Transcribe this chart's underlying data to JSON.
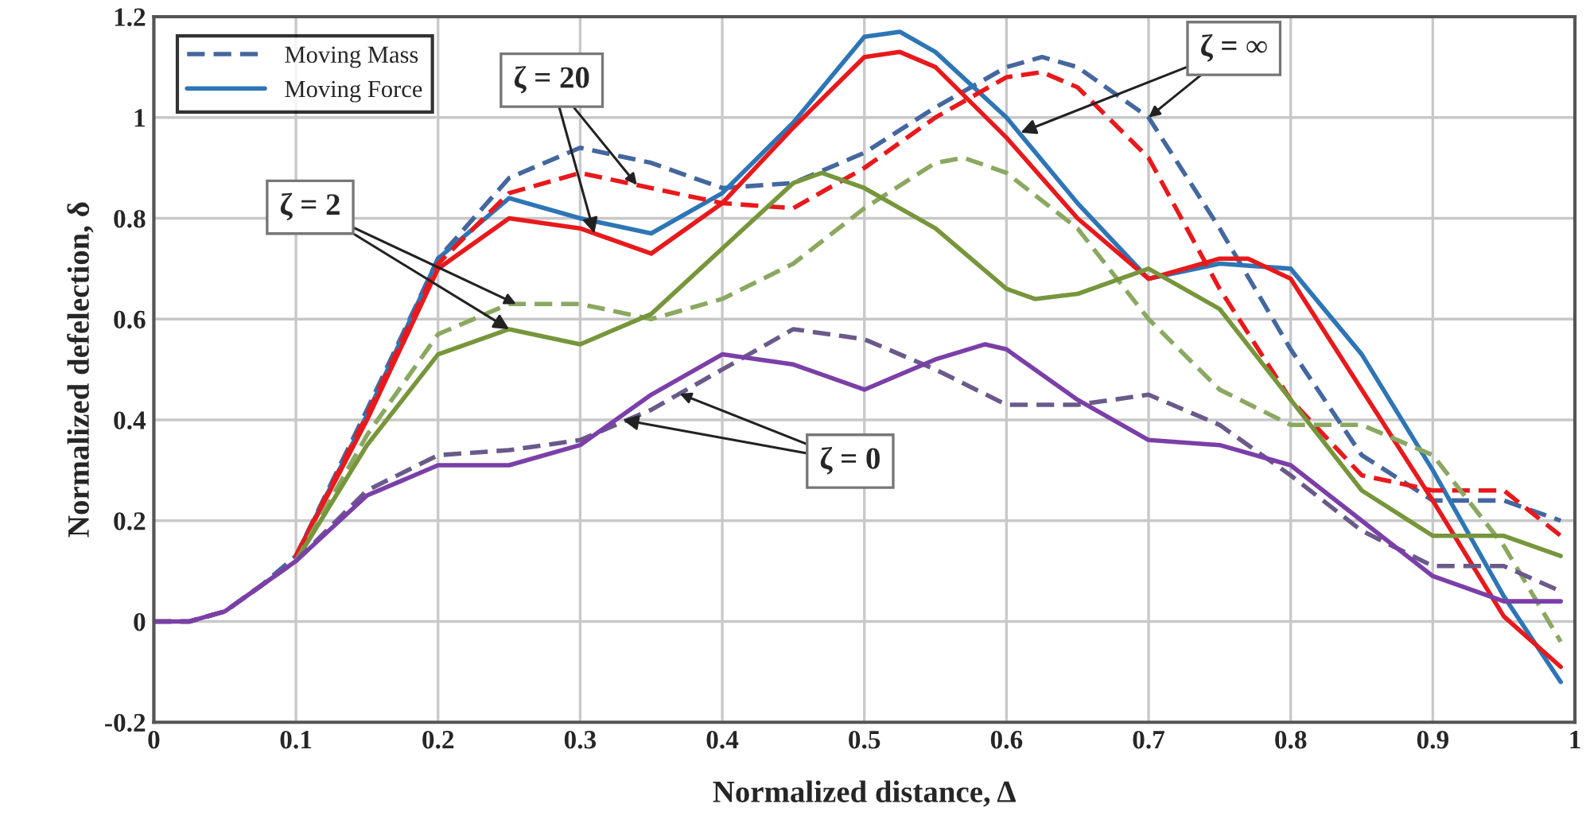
{
  "chart_data": {
    "type": "line",
    "xlabel": "Normalized distance, Δ",
    "ylabel": "Normalized defelection, δ",
    "xlim": [
      0,
      1
    ],
    "ylim": [
      -0.2,
      1.2
    ],
    "xticks": [
      0,
      {
        "value": 0.1,
        "label": "0.1"
      },
      {
        "value": 0.2,
        "label": "0.2"
      },
      {
        "value": 0.3,
        "label": "0.3"
      },
      {
        "value": 0.4,
        "label": "0.4"
      },
      {
        "value": 0.5,
        "label": "0.5"
      },
      {
        "value": 0.6,
        "label": "0.6"
      },
      {
        "value": 0.7,
        "label": "0.7"
      },
      {
        "value": 0.8,
        "label": "0.8"
      },
      {
        "value": 0.9,
        "label": "0.9"
      },
      1
    ],
    "yticks": [
      {
        "value": -0.2,
        "label": "-0.2"
      },
      0,
      {
        "value": 0.2,
        "label": "0.2"
      },
      {
        "value": 0.4,
        "label": "0.4"
      },
      {
        "value": 0.6,
        "label": "0.6"
      },
      {
        "value": 0.8,
        "label": "0.8"
      },
      1,
      {
        "value": 1.2,
        "label": "1.2"
      }
    ],
    "grid": true,
    "legend": "top left",
    "marker": "none",
    "series": [
      {
        "name": "Moving Mass",
        "color": "#44679f",
        "line_style": "dashed",
        "x": [
          0,
          0.025,
          0.05,
          0.075,
          0.1,
          0.15,
          0.2,
          0.25,
          0.3,
          0.35,
          0.4,
          0.45,
          0.5,
          0.55,
          0.6,
          0.625,
          0.65,
          0.7,
          0.75,
          0.8,
          0.85,
          0.9,
          0.95,
          0.99
        ],
        "values": [
          0,
          0,
          0.02,
          0.07,
          0.13,
          0.42,
          0.72,
          0.88,
          0.94,
          0.91,
          0.86,
          0.87,
          0.93,
          1.02,
          1.1,
          1.12,
          1.1,
          1.0,
          0.78,
          0.54,
          0.33,
          0.24,
          0.24,
          0.2
        ]
      },
      {
        "name": "Moving Force",
        "color": "#2e75b6",
        "line_style": "solid",
        "x": [
          0.1,
          0.15,
          0.2,
          0.25,
          0.3,
          0.35,
          0.4,
          0.45,
          0.5,
          0.525,
          0.55,
          0.6,
          0.65,
          0.7,
          0.75,
          0.8,
          0.85,
          0.9,
          0.95,
          0.99
        ],
        "values": [
          0.13,
          0.41,
          0.72,
          0.84,
          0.8,
          0.77,
          0.85,
          0.99,
          1.16,
          1.17,
          1.13,
          1.0,
          0.83,
          0.68,
          0.71,
          0.7,
          0.53,
          0.3,
          0.05,
          -0.12
        ]
      },
      {
        "color": "#e8191c",
        "line_style": "dashed",
        "x": [
          0.1,
          0.15,
          0.2,
          0.25,
          0.3,
          0.35,
          0.4,
          0.45,
          0.5,
          0.55,
          0.6,
          0.625,
          0.65,
          0.7,
          0.75,
          0.8,
          0.85,
          0.9,
          0.95,
          0.99
        ],
        "values": [
          0.13,
          0.41,
          0.71,
          0.85,
          0.89,
          0.86,
          0.83,
          0.82,
          0.9,
          1.0,
          1.08,
          1.09,
          1.06,
          0.92,
          0.66,
          0.44,
          0.29,
          0.26,
          0.26,
          0.17
        ]
      },
      {
        "color": "#e8191c",
        "line_style": "solid",
        "x": [
          0.1,
          0.15,
          0.2,
          0.25,
          0.3,
          0.35,
          0.4,
          0.45,
          0.5,
          0.525,
          0.55,
          0.6,
          0.65,
          0.7,
          0.75,
          0.77,
          0.8,
          0.85,
          0.9,
          0.95,
          0.99
        ],
        "values": [
          0.13,
          0.4,
          0.7,
          0.8,
          0.78,
          0.73,
          0.83,
          0.98,
          1.12,
          1.13,
          1.1,
          0.96,
          0.8,
          0.68,
          0.72,
          0.72,
          0.68,
          0.46,
          0.24,
          0.01,
          -0.09
        ]
      },
      {
        "color": "#8aa860",
        "line_style": "dashed",
        "x": [
          0,
          0.025,
          0.05,
          0.075,
          0.1,
          0.15,
          0.2,
          0.25,
          0.3,
          0.35,
          0.4,
          0.45,
          0.5,
          0.55,
          0.57,
          0.6,
          0.65,
          0.7,
          0.75,
          0.8,
          0.85,
          0.9,
          0.95,
          0.99
        ],
        "values": [
          0,
          0,
          0.02,
          0.07,
          0.12,
          0.37,
          0.57,
          0.63,
          0.63,
          0.6,
          0.64,
          0.71,
          0.82,
          0.91,
          0.92,
          0.89,
          0.78,
          0.6,
          0.46,
          0.39,
          0.39,
          0.33,
          0.15,
          -0.04
        ]
      },
      {
        "color": "#77963c",
        "line_style": "solid",
        "x": [
          0.1,
          0.15,
          0.2,
          0.25,
          0.3,
          0.35,
          0.4,
          0.45,
          0.47,
          0.5,
          0.55,
          0.6,
          0.62,
          0.65,
          0.7,
          0.75,
          0.8,
          0.85,
          0.9,
          0.95,
          0.99
        ],
        "values": [
          0.12,
          0.35,
          0.53,
          0.58,
          0.55,
          0.61,
          0.74,
          0.87,
          0.89,
          0.86,
          0.78,
          0.66,
          0.64,
          0.65,
          0.7,
          0.62,
          0.44,
          0.26,
          0.17,
          0.17,
          0.13
        ]
      },
      {
        "color": "#6a5a8a",
        "line_style": "dashed",
        "x": [
          0,
          0.025,
          0.05,
          0.075,
          0.1,
          0.15,
          0.2,
          0.25,
          0.3,
          0.35,
          0.4,
          0.45,
          0.5,
          0.55,
          0.6,
          0.65,
          0.7,
          0.75,
          0.8,
          0.85,
          0.9,
          0.95,
          0.99
        ],
        "values": [
          0,
          0,
          0.02,
          0.07,
          0.12,
          0.26,
          0.33,
          0.34,
          0.36,
          0.42,
          0.5,
          0.58,
          0.56,
          0.5,
          0.43,
          0.43,
          0.45,
          0.39,
          0.29,
          0.18,
          0.11,
          0.11,
          0.06
        ]
      },
      {
        "color": "#7b3fa8",
        "line_style": "solid",
        "x": [
          0,
          0.025,
          0.05,
          0.075,
          0.1,
          0.15,
          0.2,
          0.25,
          0.3,
          0.35,
          0.4,
          0.45,
          0.5,
          0.55,
          0.585,
          0.6,
          0.65,
          0.7,
          0.75,
          0.8,
          0.85,
          0.9,
          0.95,
          0.99
        ],
        "values": [
          0,
          0,
          0.02,
          0.07,
          0.12,
          0.25,
          0.31,
          0.31,
          0.35,
          0.45,
          0.53,
          0.51,
          0.46,
          0.52,
          0.55,
          0.54,
          0.44,
          0.36,
          0.35,
          0.31,
          0.2,
          0.09,
          0.04,
          0.04
        ]
      }
    ],
    "annotations": [
      {
        "text": "ζ = ∞",
        "x": 0.61,
        "y": 0.97
      },
      {
        "text": "ζ = 20",
        "x": 0.31,
        "y": 0.77
      },
      {
        "text": "ζ = 2",
        "x": 0.25,
        "y": 0.58
      },
      {
        "text": "ζ = 0",
        "x": 0.33,
        "y": 0.4
      }
    ]
  }
}
